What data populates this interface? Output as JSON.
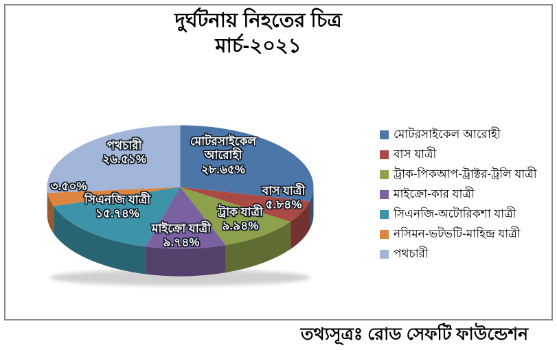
{
  "chart_data": {
    "type": "pie",
    "style": "3d-pie",
    "title": "দুর্ঘটনায় নিহতের চিত্র",
    "subtitle": "মার্চ-২০২১",
    "source": "তথ্যসূত্রঃ রোড সেফটি ফাউন্ডেশন",
    "legend_position": "right",
    "slices": [
      {
        "legend_label": "মোটরসাইকেল আরোহী",
        "pie_label_lines": [
          "মোটরসাইকেল",
          "আরোহী"
        ],
        "value": 28.65,
        "value_display": "২৮.৬৫%",
        "color": "#4C76A8"
      },
      {
        "legend_label": "বাস যাত্রী",
        "pie_label_lines": [
          "বাস যাত্রী"
        ],
        "value": 5.84,
        "value_display": "৫.৮৪%",
        "color": "#A94A44"
      },
      {
        "legend_label": "ট্রাক-পিকআপ-ট্রাক্টর-ট্রলি যাত্রী",
        "pie_label_lines": [
          "ট্রাক যাত্রী"
        ],
        "value": 9.94,
        "value_display": "৯.৯৪%",
        "color": "#8BA14B"
      },
      {
        "legend_label": "মাইক্রো-কার যাত্রী",
        "pie_label_lines": [
          "মাইক্রো যাত্রী"
        ],
        "value": 9.74,
        "value_display": "৯.৭৪%",
        "color": "#7B61A0"
      },
      {
        "legend_label": "সিএনজি-অটোরিকশা যাত্রী",
        "pie_label_lines": [
          "সিএনজি যাত্রী"
        ],
        "value": 15.74,
        "value_display": "১৫.৭৪%",
        "color": "#3D93A8"
      },
      {
        "legend_label": "নসিমন-ভটভটি-মাহিন্দ্র যাত্রী",
        "pie_label_lines": [],
        "value": 3.5,
        "value_display": "৩.৫০%",
        "color": "#DC8540"
      },
      {
        "legend_label": "পথচারী",
        "pie_label_lines": [
          "পথচারী"
        ],
        "value": 26.51,
        "value_display": "২৬.৫১%",
        "color": "#A0B5D8"
      }
    ]
  }
}
